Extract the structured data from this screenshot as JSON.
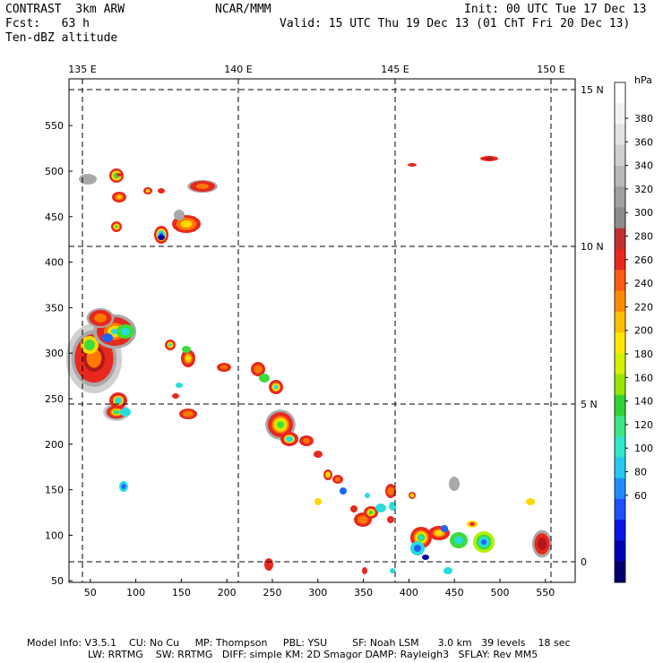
{
  "header": {
    "model": "CONTRAST  3km ARW",
    "center": "NCAR/MMM",
    "init": "Init: 00 UTC Tue 17 Dec 13",
    "fcst": "Fcst:   63 h",
    "valid": "Valid: 15 UTC Thu 19 Dec 13 (01 ChT Fri 20 Dec 13)",
    "field": "Ten-dBZ altitude"
  },
  "footer": {
    "line1": "Model Info: V3.5.1    CU: No Cu     MP: Thompson     PBL: YSU        SF: Noah LSM      3.0 km   39 levels    18 sec",
    "line2": "LW: RRTMG    SW: RRTMG   DIFF: simple KM: 2D Smagor DAMP: Rayleigh3   SFLAY: Rev MM5"
  },
  "colors": {
    "red": "#e8281e",
    "darkred": "#b01818",
    "orange": "#ff7800",
    "yellow": "#ffd800",
    "lime": "#b4f000",
    "green": "#3cdc3c",
    "cyan": "#28dcdc",
    "blue": "#1e64ff",
    "navy": "#0000a0",
    "gray": "#a8a8a8",
    "lightgray": "#d0d0d0"
  },
  "chart_data": {
    "type": "heatmap",
    "title": "Ten-dBZ altitude",
    "units_label": "hPa",
    "x_grid_ticks": [
      "50",
      "100",
      "150",
      "200",
      "250",
      "300",
      "350",
      "400",
      "450",
      "500",
      "550"
    ],
    "y_grid_ticks": [
      "50",
      "100",
      "150",
      "200",
      "250",
      "300",
      "350",
      "400",
      "450",
      "500",
      "550"
    ],
    "lon_labels": [
      "135 E",
      "140 E",
      "145 E",
      "150 E"
    ],
    "lat_labels": [
      "15 N",
      "10 N",
      "5 N",
      "0"
    ],
    "colorbar_levels": [
      "380",
      "360",
      "340",
      "320",
      "300",
      "280",
      "260",
      "240",
      "220",
      "200",
      "180",
      "160",
      "140",
      "120",
      "100",
      "80",
      "60"
    ],
    "colorbar_colors": [
      "#ffffff",
      "#f2f2f2",
      "#e2e2e2",
      "#cfcfcf",
      "#b8b8b8",
      "#a0a0a0",
      "#8c8c8c",
      "#c03030",
      "#e8281e",
      "#ff5a14",
      "#ff8c00",
      "#ffbe00",
      "#ffe600",
      "#d2f000",
      "#96e600",
      "#32d232",
      "#3ce682",
      "#32e6c8",
      "#28c8f0",
      "#1e8cff",
      "#1e50ff",
      "#0a14e6",
      "#0000b4",
      "#00006e"
    ]
  }
}
